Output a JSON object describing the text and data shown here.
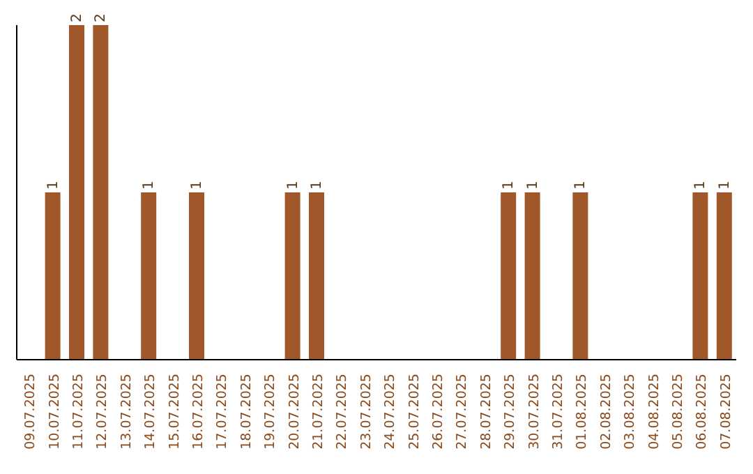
{
  "chart_data": {
    "type": "bar",
    "categories": [
      "09.07.2025",
      "10.07.2025",
      "11.07.2025",
      "12.07.2025",
      "13.07.2025",
      "14.07.2025",
      "15.07.2025",
      "16.07.2025",
      "17.07.2025",
      "18.07.2025",
      "19.07.2025",
      "20.07.2025",
      "21.07.2025",
      "22.07.2025",
      "23.07.2025",
      "24.07.2025",
      "25.07.2025",
      "26.07.2025",
      "27.07.2025",
      "28.07.2025",
      "29.07.2025",
      "30.07.2025",
      "31.07.2025",
      "01.08.2025",
      "02.08.2025",
      "03.08.2025",
      "04.08.2025",
      "05.08.2025",
      "06.08.2025",
      "07.08.2025"
    ],
    "values": [
      0,
      1,
      2,
      2,
      0,
      1,
      0,
      1,
      0,
      0,
      0,
      1,
      1,
      0,
      0,
      0,
      0,
      0,
      0,
      0,
      1,
      1,
      0,
      1,
      0,
      0,
      0,
      0,
      1,
      1
    ],
    "value_labels": [
      null,
      "1",
      "2",
      "2",
      null,
      "1",
      null,
      "1",
      null,
      null,
      null,
      "1",
      "1",
      null,
      null,
      null,
      null,
      null,
      null,
      null,
      "1",
      "1",
      null,
      "1",
      null,
      null,
      null,
      null,
      "1",
      "1"
    ],
    "color": "#a0572a",
    "ylim": [
      0,
      2
    ],
    "tick_labels": "x"
  }
}
